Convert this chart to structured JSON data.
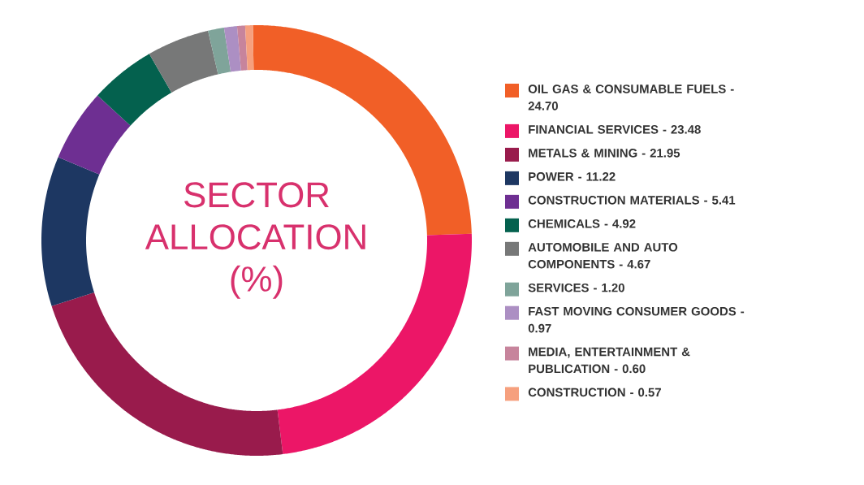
{
  "chart_data": {
    "type": "donut",
    "title": "SECTOR ALLOCATION (%)",
    "legend": "right",
    "categories": [
      "OIL GAS & CONSUMABLE FUELS - 24.70",
      "FINANCIAL SERVICES - 23.48",
      "METALS & MINING - 21.95",
      "POWER - 11.22",
      "CONSTRUCTION MATERIALS - 5.41",
      "CHEMICALS - 4.92",
      "AUTOMOBILE AND AUTO COMPONENTS - 4.67",
      "SERVICES - 1.20",
      "FAST MOVING CONSUMER GOODS - 0.97",
      "MEDIA, ENTERTAINMENT & PUBLICATION - 0.60",
      "CONSTRUCTION - 0.57"
    ],
    "values": [
      24.7,
      23.48,
      21.95,
      11.22,
      5.41,
      4.92,
      4.67,
      1.2,
      0.97,
      0.6,
      0.57
    ],
    "colors": [
      "#f15f27",
      "#ec1667",
      "#991b4c",
      "#1d3762",
      "#6e2f92",
      "#04614e",
      "#777878",
      "#7fa49a",
      "#ac8fc3",
      "#c7849c",
      "#f6a07e"
    ]
  }
}
